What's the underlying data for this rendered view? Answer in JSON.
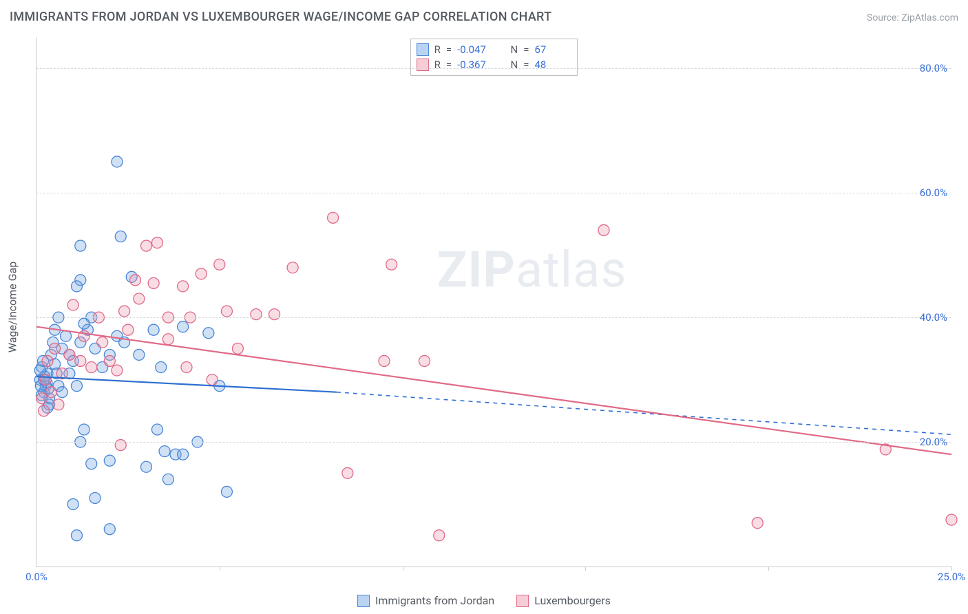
{
  "header": {
    "title": "IMMIGRANTS FROM JORDAN VS LUXEMBOURGER WAGE/INCOME GAP CORRELATION CHART",
    "source_label": "Source:",
    "source_value": "ZipAtlas.com"
  },
  "watermark": {
    "prefix": "ZIP",
    "suffix": "atlas"
  },
  "chart": {
    "type": "scatter",
    "ylabel": "Wage/Income Gap",
    "background_color": "#ffffff",
    "grid_color": "#d6d9dd",
    "axis_color": "#c8ccd1",
    "tick_color": "#3a6fd8",
    "xlim": [
      0,
      25
    ],
    "ylim": [
      0,
      85
    ],
    "yticks": [
      20,
      40,
      60,
      80
    ],
    "ytick_labels": [
      "20.0%",
      "40.0%",
      "60.0%",
      "80.0%"
    ],
    "xticks": [
      0,
      5,
      10,
      15,
      20,
      25
    ],
    "xtick_labels": [
      "0.0%",
      "",
      "",
      "",
      "",
      "25.0%"
    ],
    "marker_radius": 8,
    "marker_stroke_width": 1.3,
    "trend_line_width": 2.2,
    "label_fontsize": 16,
    "tick_fontsize": 15
  },
  "stats_legend": {
    "rows": [
      {
        "swatch_fill": "#b9d3f2",
        "swatch_stroke": "#4a86d6",
        "r_label": "R",
        "r_val": "-0.047",
        "n_label": "N",
        "n_val": "67"
      },
      {
        "swatch_fill": "#f6cdd6",
        "swatch_stroke": "#e06a86",
        "r_label": "R",
        "r_val": "-0.367",
        "n_label": "N",
        "n_val": "48"
      }
    ]
  },
  "bottom_legend": {
    "items": [
      {
        "swatch_fill": "#b9d3f2",
        "swatch_stroke": "#4a86d6",
        "label": "Immigrants from Jordan"
      },
      {
        "swatch_fill": "#f6cdd6",
        "swatch_stroke": "#e06a86",
        "label": "Luxembourgers"
      }
    ]
  },
  "series": {
    "jordan": {
      "fill": "rgba(120,170,225,0.35)",
      "stroke": "#4a86d6",
      "trend_color": "#2f6fd1",
      "trend_dash_color": "#2f6fd1",
      "trend": {
        "x1": 0,
        "y1": 30.5,
        "x2": 8.2,
        "y2": 28.0
      },
      "trend_ext": {
        "x1": 8.2,
        "y1": 28.0,
        "x2": 25,
        "y2": 21.2
      },
      "points": [
        [
          0.1,
          30
        ],
        [
          0.2,
          28
        ],
        [
          0.15,
          32
        ],
        [
          0.25,
          29
        ],
        [
          0.3,
          31
        ],
        [
          0.35,
          27
        ],
        [
          0.18,
          33
        ],
        [
          0.22,
          30.5
        ],
        [
          0.28,
          29.5
        ],
        [
          0.32,
          28.5
        ],
        [
          0.4,
          34
        ],
        [
          0.45,
          36
        ],
        [
          0.5,
          32.5
        ],
        [
          0.55,
          31
        ],
        [
          0.3,
          25.5
        ],
        [
          0.35,
          26
        ],
        [
          0.1,
          31.5
        ],
        [
          0.12,
          29
        ],
        [
          0.14,
          27.5
        ],
        [
          0.2,
          30
        ],
        [
          0.5,
          38
        ],
        [
          0.6,
          40
        ],
        [
          0.7,
          35
        ],
        [
          0.8,
          37
        ],
        [
          0.9,
          34
        ],
        [
          1.0,
          33
        ],
        [
          0.9,
          31
        ],
        [
          1.1,
          29
        ],
        [
          1.2,
          36
        ],
        [
          1.4,
          38
        ],
        [
          1.2,
          46
        ],
        [
          1.1,
          45
        ],
        [
          1.3,
          39
        ],
        [
          1.5,
          40
        ],
        [
          1.6,
          35
        ],
        [
          1.8,
          32
        ],
        [
          2.0,
          34
        ],
        [
          2.2,
          37
        ],
        [
          2.4,
          36
        ],
        [
          2.6,
          46.5
        ],
        [
          2.8,
          34
        ],
        [
          3.2,
          38
        ],
        [
          3.4,
          32
        ],
        [
          3.5,
          18.5
        ],
        [
          3.6,
          14
        ],
        [
          3.8,
          18
        ],
        [
          2.0,
          6
        ],
        [
          1.6,
          11
        ],
        [
          1.0,
          10
        ],
        [
          1.1,
          5
        ],
        [
          1.2,
          20
        ],
        [
          1.3,
          22
        ],
        [
          1.5,
          16.5
        ],
        [
          2.0,
          17
        ],
        [
          3.0,
          16
        ],
        [
          3.3,
          22
        ],
        [
          4.0,
          18
        ],
        [
          4.4,
          20
        ],
        [
          5.0,
          29
        ],
        [
          5.2,
          12
        ],
        [
          1.2,
          51.5
        ],
        [
          2.2,
          65
        ],
        [
          2.3,
          53
        ],
        [
          0.6,
          29
        ],
        [
          0.7,
          28
        ],
        [
          4.7,
          37.5
        ],
        [
          4.0,
          38.5
        ]
      ]
    },
    "lux": {
      "fill": "rgba(235,150,175,0.32)",
      "stroke": "#e06a86",
      "trend_color": "#e06a86",
      "trend": {
        "x1": 0,
        "y1": 38.5,
        "x2": 25,
        "y2": 18.0
      },
      "points": [
        [
          0.15,
          27
        ],
        [
          0.2,
          25
        ],
        [
          0.25,
          30
        ],
        [
          0.3,
          33
        ],
        [
          0.4,
          28
        ],
        [
          0.5,
          35
        ],
        [
          0.6,
          26
        ],
        [
          0.7,
          31
        ],
        [
          0.9,
          34
        ],
        [
          1.0,
          42
        ],
        [
          1.2,
          33
        ],
        [
          1.3,
          37
        ],
        [
          1.5,
          32
        ],
        [
          1.7,
          40
        ],
        [
          1.8,
          36
        ],
        [
          2.0,
          33
        ],
        [
          2.2,
          31.5
        ],
        [
          2.4,
          41
        ],
        [
          2.5,
          38
        ],
        [
          2.7,
          46
        ],
        [
          2.8,
          43
        ],
        [
          3.0,
          51.5
        ],
        [
          3.2,
          45.5
        ],
        [
          3.3,
          52
        ],
        [
          3.6,
          36.5
        ],
        [
          3.6,
          40
        ],
        [
          4.0,
          45
        ],
        [
          4.2,
          40
        ],
        [
          4.5,
          47.0
        ],
        [
          4.8,
          30
        ],
        [
          5.0,
          48.5
        ],
        [
          5.2,
          41
        ],
        [
          5.5,
          35
        ],
        [
          6.0,
          40.5
        ],
        [
          6.5,
          40.5
        ],
        [
          7.0,
          48
        ],
        [
          8.1,
          56
        ],
        [
          8.5,
          15
        ],
        [
          9.5,
          33
        ],
        [
          9.7,
          48.5
        ],
        [
          10.6,
          33
        ],
        [
          11.0,
          5
        ],
        [
          15.5,
          54
        ],
        [
          19.7,
          7
        ],
        [
          23.2,
          18.8
        ],
        [
          25.0,
          7.5
        ],
        [
          2.3,
          19.5
        ],
        [
          4.1,
          32
        ]
      ]
    }
  }
}
